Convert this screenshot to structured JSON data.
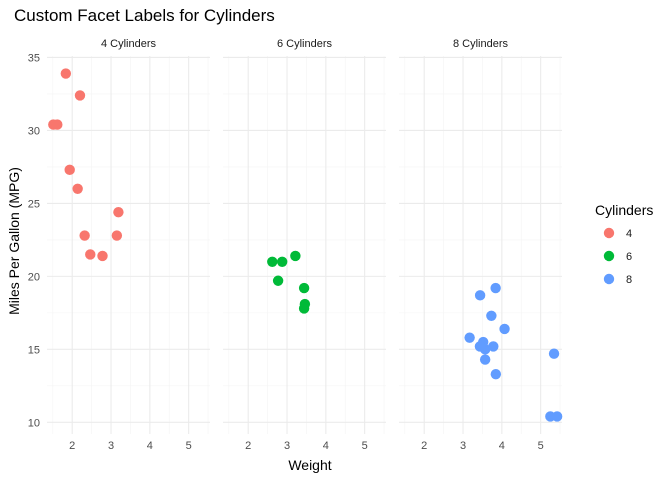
{
  "chart_data": {
    "type": "scatter",
    "title": "Custom Facet Labels for Cylinders",
    "xlabel": "Weight",
    "ylabel": "Miles Per Gallon (MPG)",
    "xlim": [
      1.35,
      5.55
    ],
    "ylim": [
      9.2,
      35.1
    ],
    "x_ticks": [
      2,
      3,
      4,
      5
    ],
    "y_ticks": [
      10,
      15,
      20,
      25,
      30,
      35
    ],
    "grid": true,
    "facets": [
      "4 Cylinders",
      "6 Cylinders",
      "8 Cylinders"
    ],
    "legend": {
      "title": "Cylinders",
      "position": "right",
      "entries": [
        "4",
        "6",
        "8"
      ]
    },
    "series": [
      {
        "name": "4",
        "facet": "4 Cylinders",
        "color": "#F8766D",
        "x": [
          1.835,
          2.2,
          1.513,
          1.615,
          1.935,
          2.14,
          2.32,
          3.19,
          3.15,
          2.465,
          2.78
        ],
        "y": [
          33.9,
          32.4,
          30.4,
          30.4,
          27.3,
          26.0,
          22.8,
          24.4,
          22.8,
          21.5,
          21.4
        ]
      },
      {
        "name": "6",
        "facet": "6 Cylinders",
        "color": "#00BA38",
        "x": [
          2.62,
          2.875,
          3.215,
          2.77,
          3.44,
          3.44,
          3.46
        ],
        "y": [
          21.0,
          21.0,
          21.4,
          19.7,
          19.2,
          17.8,
          18.1
        ]
      },
      {
        "name": "8",
        "facet": "8 Cylinders",
        "color": "#619CFF",
        "x": [
          3.44,
          3.84,
          3.73,
          4.07,
          3.17,
          3.57,
          3.52,
          3.435,
          3.78,
          3.57,
          3.845,
          5.345,
          5.25,
          5.424
        ],
        "y": [
          18.7,
          19.2,
          17.3,
          16.4,
          15.8,
          15.0,
          15.5,
          15.2,
          15.2,
          14.3,
          13.3,
          14.7,
          10.4,
          10.4
        ]
      }
    ]
  }
}
